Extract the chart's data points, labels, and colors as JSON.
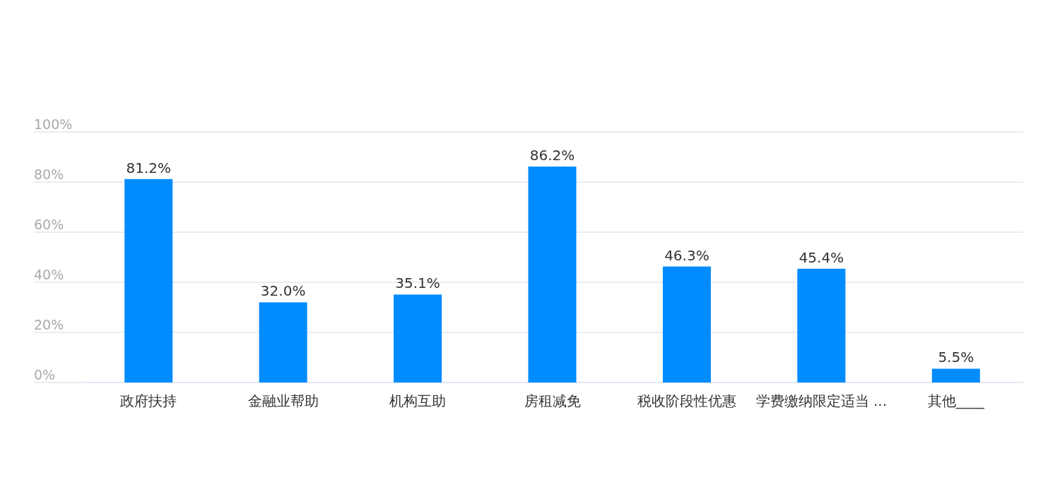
{
  "chart_data": {
    "type": "bar",
    "categories": [
      "政府扶持",
      "金融业帮助",
      "机构互助",
      "房租减免",
      "税收阶段性优惠",
      "学费缴纳限定适当 ...",
      "其他____"
    ],
    "values": [
      81.2,
      32.0,
      35.1,
      86.2,
      46.3,
      45.4,
      5.5
    ],
    "value_labels": [
      "81.2%",
      "32.0%",
      "35.1%",
      "86.2%",
      "46.3%",
      "45.4%",
      "5.5%"
    ],
    "color": "#008cff",
    "ylim": [
      0,
      100
    ],
    "yticks": [
      {
        "value": 0,
        "label": "0%"
      },
      {
        "value": 20,
        "label": "20%"
      },
      {
        "value": 40,
        "label": "40%"
      },
      {
        "value": 60,
        "label": "60%"
      },
      {
        "value": 80,
        "label": "80%"
      },
      {
        "value": 100,
        "label": "100%"
      }
    ],
    "grid": "y"
  }
}
